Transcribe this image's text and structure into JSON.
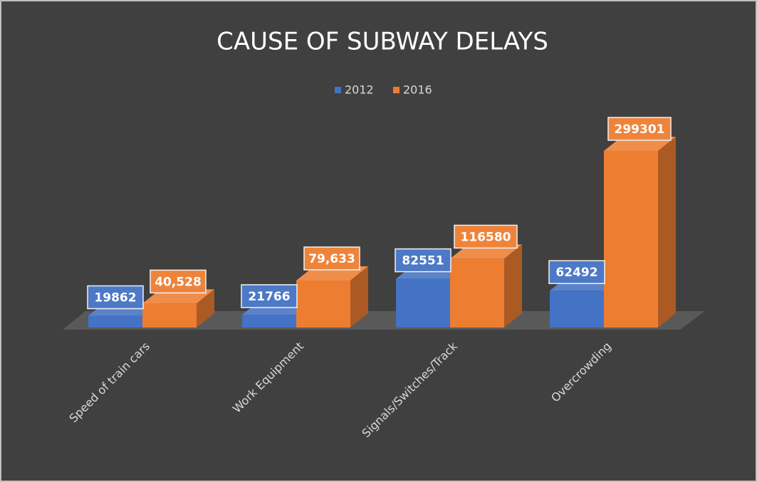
{
  "chart_data": {
    "type": "bar3d",
    "title": "CAUSE OF SUBWAY DELAYS",
    "categories": [
      "Speed of train cars",
      "Work Equipment",
      "Signals/Switches/Track",
      "Overcrowding"
    ],
    "series": [
      {
        "name": "2012",
        "color": "#4472c4",
        "values": [
          19862,
          21766,
          82551,
          62492
        ]
      },
      {
        "name": "2016",
        "color": "#ed7d31",
        "values": [
          40528,
          79633,
          116580,
          299301
        ],
        "value_labels": [
          "40,528",
          "79,633",
          "116580",
          "299301"
        ]
      }
    ],
    "legend": "top"
  }
}
